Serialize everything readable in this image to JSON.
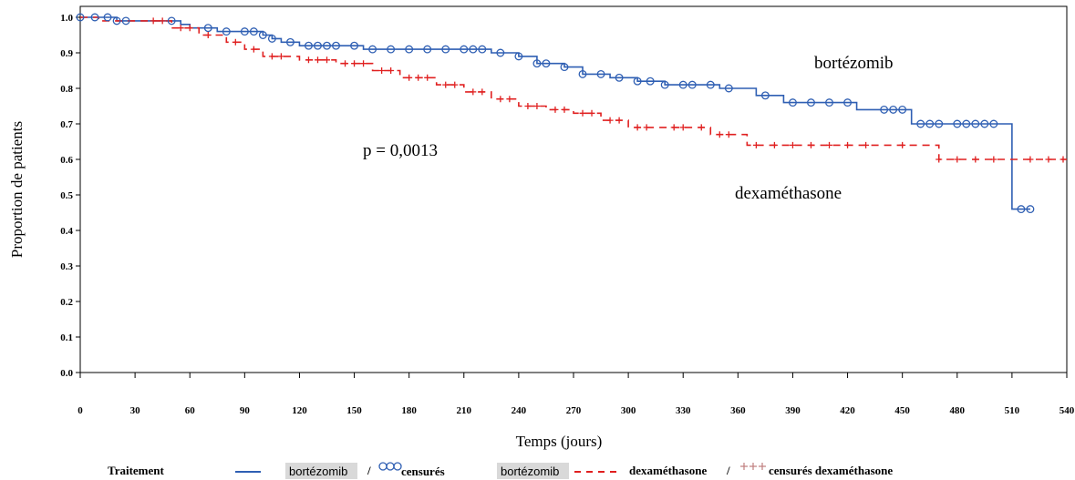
{
  "chart_data": {
    "type": "line",
    "ylabel": "Proportion de patients",
    "xlabel": "Temps (jours)",
    "xlim": [
      0,
      540
    ],
    "ylim": [
      0,
      1.0
    ],
    "xticks": [
      "0",
      "30",
      "60",
      "90",
      "120",
      "150",
      "180",
      "210",
      "240",
      "270",
      "300",
      "330",
      "360",
      "390",
      "420",
      "450",
      "480",
      "510",
      "540"
    ],
    "yticks": [
      "0.0",
      "0.1",
      "0.2",
      "0.3",
      "0.4",
      "0.5",
      "0.6",
      "0.7",
      "0.8",
      "0.9",
      "1.0"
    ],
    "annotations": {
      "pvalue": "p = 0,0013",
      "bortezomib": "bortézomib",
      "dexamethasone": "dexaméthasone"
    },
    "series": [
      {
        "name": "bortézomib",
        "color": "#2f5fb3",
        "style": "solid-step",
        "censor_marker": "circle",
        "x": [
          0,
          20,
          45,
          55,
          60,
          75,
          95,
          100,
          105,
          110,
          115,
          120,
          135,
          155,
          175,
          195,
          215,
          225,
          240,
          250,
          265,
          275,
          290,
          305,
          320,
          340,
          350,
          370,
          385,
          410,
          425,
          455,
          505,
          510,
          520
        ],
        "y": [
          1.0,
          0.99,
          0.99,
          0.98,
          0.97,
          0.96,
          0.96,
          0.95,
          0.94,
          0.93,
          0.93,
          0.92,
          0.92,
          0.91,
          0.91,
          0.91,
          0.91,
          0.9,
          0.89,
          0.87,
          0.86,
          0.84,
          0.83,
          0.82,
          0.81,
          0.81,
          0.8,
          0.78,
          0.76,
          0.76,
          0.74,
          0.7,
          0.7,
          0.46,
          0.46
        ],
        "censored_x": [
          0,
          8,
          15,
          20,
          25,
          50,
          70,
          80,
          90,
          95,
          100,
          105,
          115,
          125,
          130,
          135,
          140,
          150,
          160,
          170,
          180,
          190,
          200,
          210,
          215,
          220,
          230,
          240,
          250,
          255,
          265,
          275,
          285,
          295,
          305,
          312,
          320,
          330,
          335,
          345,
          355,
          375,
          390,
          400,
          410,
          420,
          440,
          445,
          450,
          460,
          465,
          470,
          480,
          485,
          490,
          495,
          500,
          515,
          520
        ]
      },
      {
        "name": "dexaméthasone",
        "color": "#e02020",
        "style": "dashed-step",
        "censor_marker": "plus",
        "x": [
          0,
          10,
          30,
          50,
          65,
          80,
          90,
          100,
          120,
          140,
          160,
          175,
          195,
          210,
          225,
          240,
          255,
          270,
          285,
          300,
          320,
          345,
          365,
          400,
          465,
          470,
          540
        ],
        "y": [
          1.0,
          0.99,
          0.99,
          0.97,
          0.95,
          0.93,
          0.91,
          0.89,
          0.88,
          0.87,
          0.85,
          0.83,
          0.81,
          0.79,
          0.77,
          0.75,
          0.74,
          0.73,
          0.71,
          0.69,
          0.69,
          0.67,
          0.64,
          0.64,
          0.64,
          0.6,
          0.6
        ],
        "censored_x": [
          40,
          45,
          55,
          60,
          70,
          85,
          95,
          105,
          110,
          125,
          130,
          135,
          145,
          150,
          155,
          165,
          170,
          180,
          185,
          190,
          200,
          205,
          215,
          220,
          230,
          235,
          245,
          250,
          260,
          265,
          275,
          280,
          290,
          295,
          305,
          310,
          325,
          330,
          340,
          350,
          355,
          370,
          380,
          390,
          400,
          410,
          420,
          430,
          450,
          470,
          480,
          490,
          500,
          520,
          530,
          538
        ]
      }
    ],
    "legend": {
      "title": "Traitement",
      "item1": "bortézomib",
      "item2": "censurés",
      "item3": "bortézomib",
      "item4": "dexaméthasone",
      "item5": "censurés dexaméthasone"
    }
  }
}
